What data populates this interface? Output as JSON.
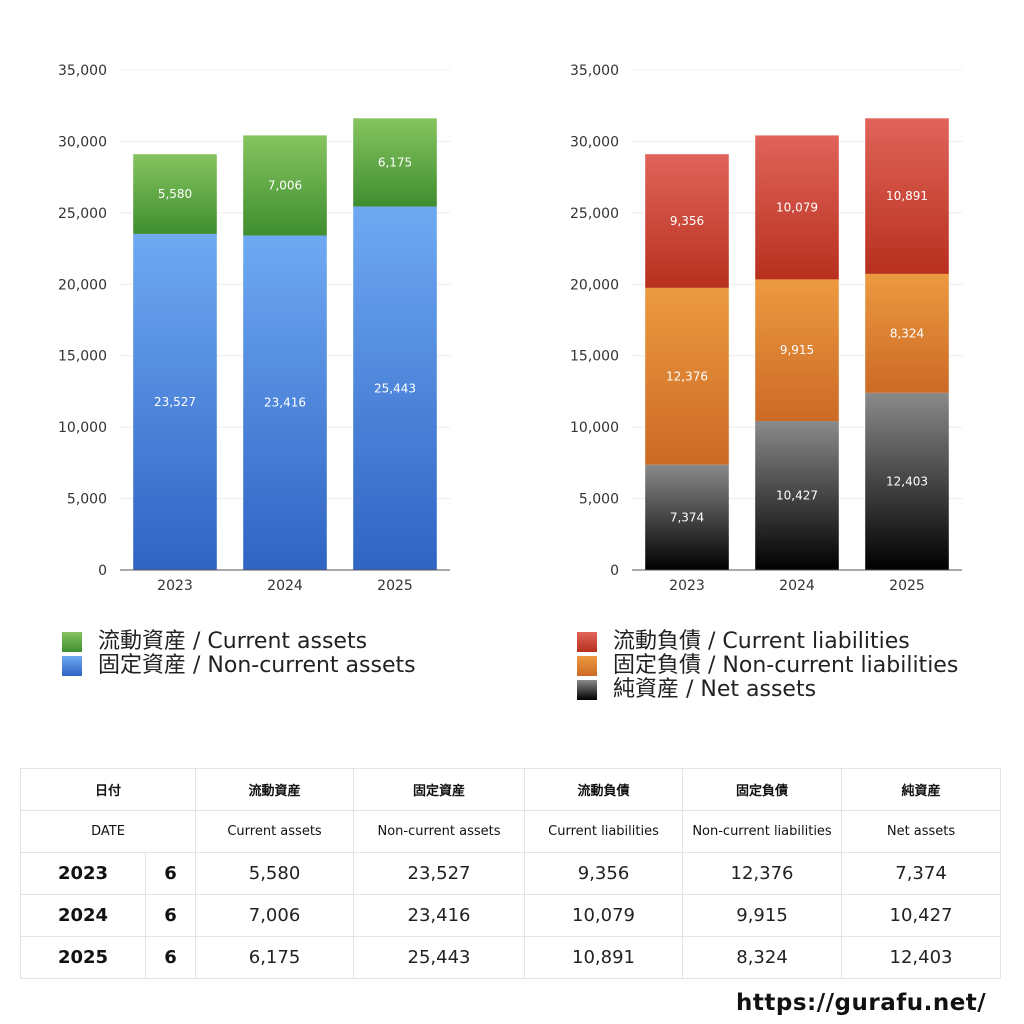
{
  "chart_data": [
    {
      "type": "bar",
      "stacked": true,
      "categories": [
        "2023",
        "2024",
        "2025"
      ],
      "series": [
        {
          "name": "固定資産 / Non-current assets",
          "values": [
            23527,
            23416,
            25443
          ],
          "color_top": "#6fa9f2",
          "color_bottom": "#2f64c4"
        },
        {
          "name": "流動資産 / Current assets",
          "values": [
            5580,
            7006,
            6175
          ],
          "color_top": "#86c460",
          "color_bottom": "#3f8e2f"
        }
      ],
      "data_labels": true,
      "yticks": [
        "0",
        "5,000",
        "10,000",
        "15,000",
        "20,000",
        "25,000",
        "30,000",
        "35,000"
      ],
      "ylim": [
        0,
        35000
      ],
      "grid": true,
      "legend": "bottom"
    },
    {
      "type": "bar",
      "stacked": true,
      "categories": [
        "2023",
        "2024",
        "2025"
      ],
      "series": [
        {
          "name": "純資産 / Net assets",
          "values": [
            7374,
            10427,
            12403
          ],
          "color_top": "#8a8a8a",
          "color_bottom": "#000000"
        },
        {
          "name": "固定負債 / Non-current liabilities",
          "values": [
            12376,
            9915,
            8324
          ],
          "color_top": "#ec9a40",
          "color_bottom": "#cc6a26"
        },
        {
          "name": "流動負債 / Current liabilities",
          "values": [
            9356,
            10079,
            10891
          ],
          "color_top": "#e0645a",
          "color_bottom": "#b8301e"
        }
      ],
      "data_labels": true,
      "yticks": [
        "0",
        "5,000",
        "10,000",
        "15,000",
        "20,000",
        "25,000",
        "30,000",
        "35,000"
      ],
      "ylim": [
        0,
        35000
      ],
      "grid": true,
      "legend": "bottom"
    }
  ],
  "legend_left": [
    {
      "label": "流動資産 / Current assets",
      "color_top": "#86c460",
      "color_bottom": "#3f8e2f"
    },
    {
      "label": "固定資産 / Non-current assets",
      "color_top": "#6fa9f2",
      "color_bottom": "#2f64c4"
    }
  ],
  "legend_right": [
    {
      "label": "流動負債 / Current liabilities",
      "color_top": "#e0645a",
      "color_bottom": "#b8301e"
    },
    {
      "label": "固定負債 / Non-current liabilities",
      "color_top": "#ec9a40",
      "color_bottom": "#cc6a26"
    },
    {
      "label": "純資産 / Net assets",
      "color_top": "#8a8a8a",
      "color_bottom": "#000000"
    }
  ],
  "table": {
    "header_jp": {
      "date": "日付",
      "current_assets": "流動資産",
      "noncurrent_assets": "固定資産",
      "current_liabilities": "流動負債",
      "noncurrent_liabilities": "固定負債",
      "net_assets": "純資産"
    },
    "header_en": {
      "date": "DATE",
      "current_assets": "Current assets",
      "noncurrent_assets": "Non-current assets",
      "current_liabilities": "Current liabilities",
      "noncurrent_liabilities": "Non-current liabilities",
      "net_assets": "Net assets"
    },
    "rows": [
      {
        "year": "2023",
        "month": "6",
        "current_assets": "5,580",
        "noncurrent_assets": "23,527",
        "current_liabilities": "9,356",
        "noncurrent_liabilities": "12,376",
        "net_assets": "7,374"
      },
      {
        "year": "2024",
        "month": "6",
        "current_assets": "7,006",
        "noncurrent_assets": "23,416",
        "current_liabilities": "10,079",
        "noncurrent_liabilities": "9,915",
        "net_assets": "10,427"
      },
      {
        "year": "2025",
        "month": "6",
        "current_assets": "6,175",
        "noncurrent_assets": "25,443",
        "current_liabilities": "10,891",
        "noncurrent_liabilities": "8,324",
        "net_assets": "12,403"
      }
    ]
  },
  "footer": {
    "url": "https://gurafu.net/"
  }
}
